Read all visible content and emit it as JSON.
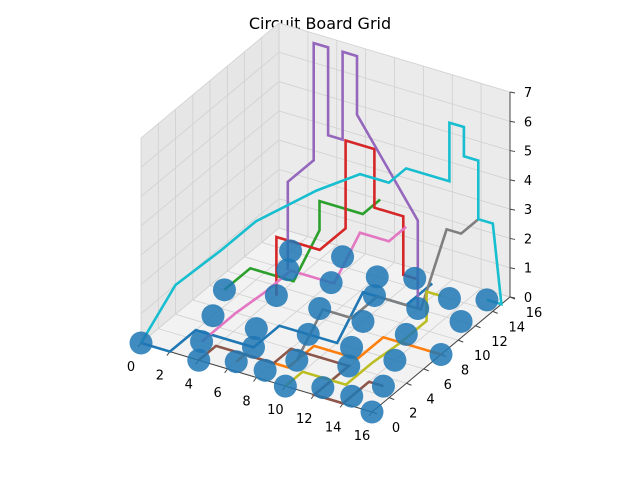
{
  "chart_data": {
    "type": "line3d",
    "title": "Circuit Board Grid",
    "xlabel": "",
    "ylabel": "",
    "zlabel": "",
    "xlim": [
      0,
      16
    ],
    "ylim": [
      0,
      16
    ],
    "zlim": [
      0,
      7
    ],
    "xticks": [
      "0",
      "2",
      "4",
      "6",
      "8",
      "10",
      "12",
      "14",
      "16"
    ],
    "yticks": [
      "0",
      "2",
      "4",
      "6",
      "8",
      "10",
      "12",
      "14",
      "16"
    ],
    "zticks": [
      "0",
      "1",
      "2",
      "3",
      "4",
      "5",
      "6",
      "7"
    ],
    "grid": true,
    "node_color": "#1f77b4",
    "nodes": [
      [
        0,
        0,
        0
      ],
      [
        4,
        0,
        0
      ],
      [
        6,
        1,
        0
      ],
      [
        8,
        1,
        0
      ],
      [
        10,
        0,
        0
      ],
      [
        12,
        1,
        0
      ],
      [
        14,
        1,
        0
      ],
      [
        16,
        0,
        0
      ],
      [
        3,
        2,
        0
      ],
      [
        6,
        3,
        0
      ],
      [
        9,
        3,
        0
      ],
      [
        12,
        4,
        0
      ],
      [
        15,
        3,
        0
      ],
      [
        2,
        5,
        0
      ],
      [
        5,
        5,
        0
      ],
      [
        8,
        6,
        0
      ],
      [
        11,
        6,
        0
      ],
      [
        14,
        6,
        0
      ],
      [
        1,
        8,
        0
      ],
      [
        4,
        9,
        0
      ],
      [
        7,
        9,
        0
      ],
      [
        10,
        9,
        0
      ],
      [
        13,
        9,
        0
      ],
      [
        16,
        8,
        0
      ],
      [
        3,
        12,
        0
      ],
      [
        6,
        12,
        0
      ],
      [
        9,
        12,
        0
      ],
      [
        12,
        12,
        0
      ],
      [
        15,
        12,
        0
      ],
      [
        5,
        15,
        0
      ],
      [
        10,
        15,
        0
      ],
      [
        15,
        15,
        0
      ],
      [
        2,
        14,
        0
      ],
      [
        8,
        14,
        0
      ],
      [
        13,
        14,
        0
      ]
    ],
    "series": [
      {
        "color": "#1f77b4",
        "points": [
          [
            0,
            0,
            0
          ],
          [
            2,
            0,
            0
          ],
          [
            2,
            3,
            0
          ],
          [
            6,
            3,
            0
          ],
          [
            6,
            6,
            0
          ],
          [
            10,
            6,
            0
          ],
          [
            10,
            9,
            1
          ],
          [
            13,
            9,
            1
          ],
          [
            13,
            12,
            1
          ]
        ]
      },
      {
        "color": "#ff7f0e",
        "points": [
          [
            6,
            1,
            0
          ],
          [
            6,
            2,
            0
          ],
          [
            9,
            2,
            0
          ],
          [
            9,
            5,
            0
          ],
          [
            12,
            5,
            0
          ],
          [
            12,
            8,
            0
          ],
          [
            16,
            8,
            0
          ]
        ]
      },
      {
        "color": "#2ca02c",
        "points": [
          [
            1,
            8,
            0
          ],
          [
            1,
            11,
            0
          ],
          [
            4,
            11,
            0
          ],
          [
            4,
            14,
            1
          ],
          [
            4,
            14,
            2
          ],
          [
            7,
            14,
            2
          ],
          [
            7,
            16,
            2
          ]
        ]
      },
      {
        "color": "#d62728",
        "points": [
          [
            4,
            9,
            0
          ],
          [
            4,
            9,
            2
          ],
          [
            7,
            9,
            2
          ],
          [
            7,
            12,
            2
          ],
          [
            7,
            12,
            5
          ],
          [
            9,
            12,
            5
          ],
          [
            9,
            12,
            3
          ],
          [
            11,
            12,
            3
          ],
          [
            11,
            12,
            1
          ],
          [
            12,
            12,
            1
          ]
        ]
      },
      {
        "color": "#9467bd",
        "points": [
          [
            3,
            12,
            0
          ],
          [
            3,
            12,
            3
          ],
          [
            3,
            15,
            3
          ],
          [
            3,
            15,
            7
          ],
          [
            4,
            15,
            7
          ],
          [
            4,
            15,
            4
          ],
          [
            5,
            15,
            4
          ],
          [
            5,
            15,
            7
          ],
          [
            6,
            15,
            7
          ],
          [
            6,
            15,
            5
          ],
          [
            12,
            12,
            3
          ],
          [
            12,
            12,
            0
          ]
        ]
      },
      {
        "color": "#8c564b",
        "points": [
          [
            4,
            0,
            0
          ],
          [
            4,
            2,
            0
          ],
          [
            8,
            2,
            0
          ],
          [
            8,
            4,
            0
          ],
          [
            12,
            4,
            0
          ],
          [
            12,
            0,
            0
          ],
          [
            14,
            0,
            0
          ],
          [
            14,
            3,
            0
          ],
          [
            15,
            3,
            0
          ]
        ]
      },
      {
        "color": "#e377c2",
        "points": [
          [
            3,
            2,
            0
          ],
          [
            3,
            6,
            0
          ],
          [
            5,
            6,
            1
          ],
          [
            5,
            9,
            1
          ],
          [
            8,
            9,
            1
          ],
          [
            8,
            12,
            2
          ],
          [
            10,
            12,
            2
          ],
          [
            10,
            14,
            2
          ]
        ]
      },
      {
        "color": "#7f7f7f",
        "points": [
          [
            9,
            3,
            0
          ],
          [
            9,
            6,
            1
          ],
          [
            11,
            6,
            1
          ],
          [
            11,
            9,
            1
          ],
          [
            14,
            9,
            1
          ],
          [
            14,
            12,
            3
          ],
          [
            15,
            12,
            3
          ],
          [
            15,
            14,
            3
          ]
        ]
      },
      {
        "color": "#bcbd22",
        "points": [
          [
            10,
            0,
            0
          ],
          [
            10,
            2,
            0
          ],
          [
            13,
            2,
            0
          ],
          [
            13,
            5,
            0
          ],
          [
            15,
            5,
            1
          ],
          [
            15,
            8,
            1
          ],
          [
            15,
            8,
            2
          ],
          [
            16,
            8,
            2
          ]
        ]
      },
      {
        "color": "#17becf",
        "points": [
          [
            0,
            0,
            0
          ],
          [
            0,
            4,
            1
          ],
          [
            2,
            6,
            2
          ],
          [
            2,
            10,
            2
          ],
          [
            5,
            12,
            3
          ],
          [
            8,
            12,
            4
          ],
          [
            10,
            12,
            4
          ],
          [
            10,
            14,
            4
          ],
          [
            13,
            14,
            4
          ],
          [
            13,
            14,
            6
          ],
          [
            14,
            14,
            6
          ],
          [
            14,
            14,
            5
          ],
          [
            15,
            14,
            5
          ],
          [
            15,
            14,
            3
          ],
          [
            16,
            14,
            3
          ],
          [
            16,
            15,
            0
          ],
          [
            15,
            15,
            0
          ]
        ]
      }
    ]
  }
}
